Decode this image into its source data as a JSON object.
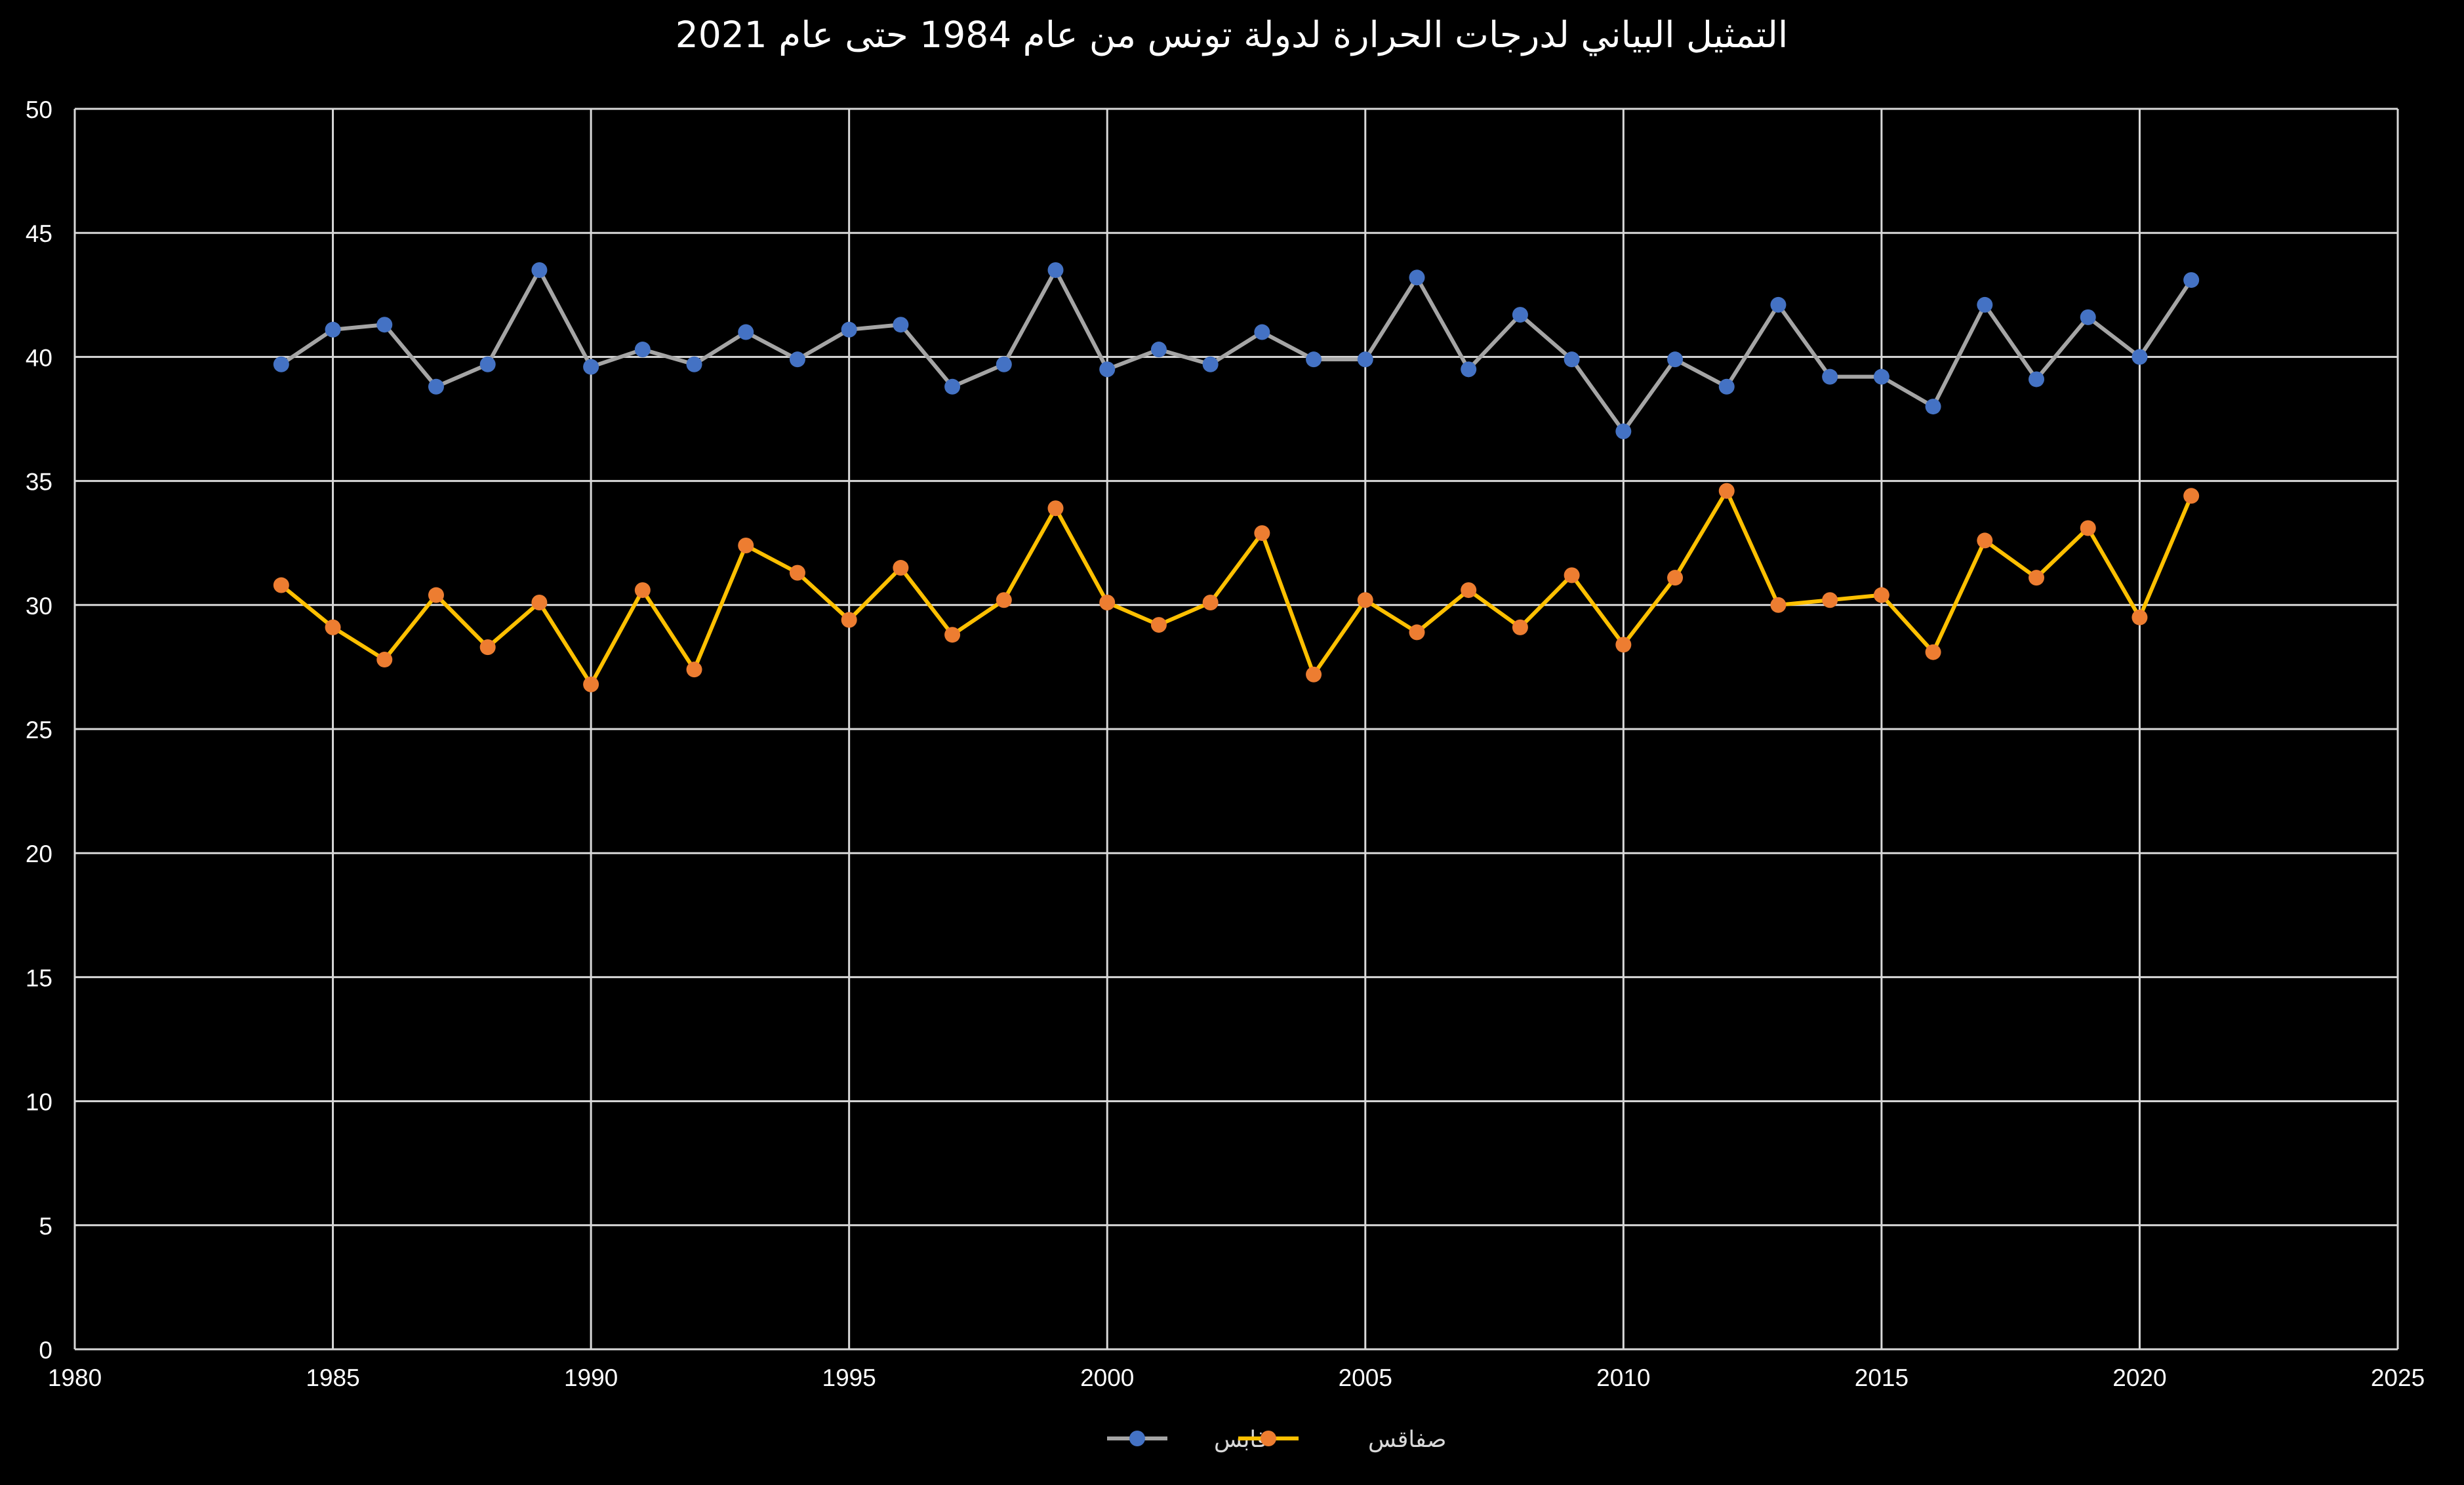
{
  "chart_data": {
    "type": "scatter",
    "title": "التمثيل البياني لدرجات الحرارة لدولة تونس من عام 1984 حتى عام 2021",
    "xlabel": "",
    "ylabel": "",
    "xlim": [
      1980,
      2025
    ],
    "ylim": [
      0,
      50
    ],
    "x_ticks": [
      1980,
      1985,
      1990,
      1995,
      2000,
      2005,
      2010,
      2015,
      2020,
      2025
    ],
    "y_ticks": [
      0,
      5,
      10,
      15,
      20,
      25,
      30,
      35,
      40,
      45,
      50
    ],
    "grid": true,
    "legend_position": "bottom-center",
    "x": [
      1984,
      1985,
      1986,
      1987,
      1988,
      1989,
      1990,
      1991,
      1992,
      1993,
      1994,
      1995,
      1996,
      1997,
      1998,
      1999,
      2000,
      2001,
      2002,
      2003,
      2004,
      2005,
      2006,
      2007,
      2008,
      2009,
      2010,
      2011,
      2012,
      2013,
      2014,
      2015,
      2016,
      2017,
      2018,
      2019,
      2020,
      2021
    ],
    "series": [
      {
        "name": "قابس",
        "line_color": "#a5a5a5",
        "marker_color": "#4472c4",
        "values": [
          39.7,
          41.1,
          41.3,
          38.8,
          39.7,
          43.5,
          39.6,
          40.3,
          39.7,
          41.0,
          39.9,
          41.1,
          41.3,
          38.8,
          39.7,
          43.5,
          39.5,
          40.3,
          39.7,
          41.0,
          39.9,
          39.9,
          43.2,
          39.5,
          41.7,
          39.9,
          37.0,
          39.9,
          38.8,
          42.1,
          39.2,
          39.2,
          38.0,
          42.1,
          39.1,
          41.6,
          40.0,
          43.1
        ]
      },
      {
        "name": "صفاقس",
        "line_color": "#ffc000",
        "marker_color": "#ed7d31",
        "values": [
          30.8,
          29.1,
          27.8,
          30.4,
          28.3,
          30.1,
          26.8,
          30.6,
          27.4,
          32.4,
          31.3,
          29.4,
          31.5,
          28.8,
          30.2,
          33.9,
          30.1,
          29.2,
          30.1,
          32.9,
          27.2,
          30.2,
          28.9,
          30.6,
          29.1,
          31.2,
          28.4,
          31.1,
          34.6,
          30.0,
          30.2,
          30.4,
          28.1,
          32.6,
          31.1,
          33.1,
          29.5,
          34.4
        ]
      }
    ]
  }
}
